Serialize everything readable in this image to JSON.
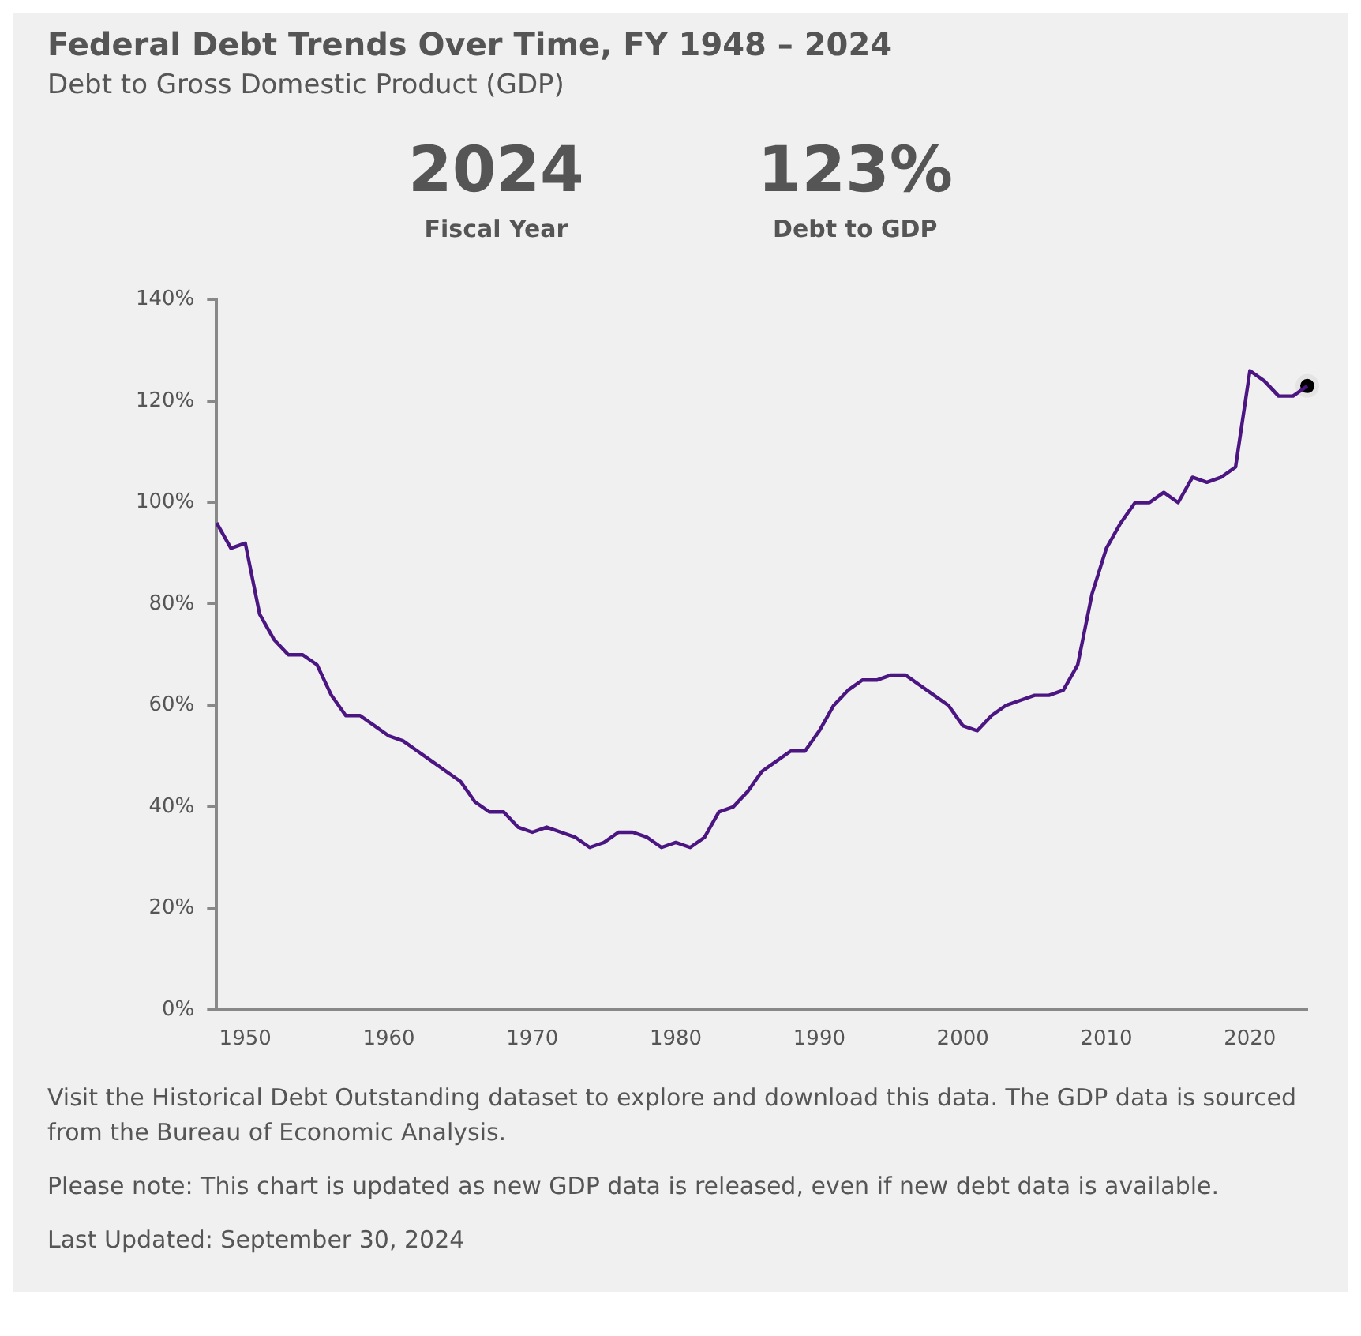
{
  "chart_data": {
    "type": "line",
    "title": "Federal Debt Trends Over Time, FY 1948 – 2024",
    "subtitle": "Debt to Gross Domestic Product (GDP)",
    "annotations": [
      "2024",
      "Fiscal Year",
      "123%",
      "Debt to GDP",
      "Visit the Historical Debt Outstanding dataset to explore and download this data. The GDP data is sourced from the Bureau of Economic Analysis.",
      "Please note: This chart is updated as new GDP data is released, even if new debt data is available.",
      "Last Updated: September 30, 2024"
    ],
    "x": [
      1948,
      1949,
      1950,
      1951,
      1952,
      1953,
      1954,
      1955,
      1956,
      1957,
      1958,
      1959,
      1960,
      1961,
      1962,
      1963,
      1964,
      1965,
      1966,
      1967,
      1968,
      1969,
      1970,
      1971,
      1972,
      1973,
      1974,
      1975,
      1976,
      1977,
      1978,
      1979,
      1980,
      1981,
      1982,
      1983,
      1984,
      1985,
      1986,
      1987,
      1988,
      1989,
      1990,
      1991,
      1992,
      1993,
      1994,
      1995,
      1996,
      1997,
      1998,
      1999,
      2000,
      2001,
      2002,
      2003,
      2004,
      2005,
      2006,
      2007,
      2008,
      2009,
      2010,
      2011,
      2012,
      2013,
      2014,
      2015,
      2016,
      2017,
      2018,
      2019,
      2020,
      2021,
      2022,
      2023,
      2024
    ],
    "series": [
      {
        "color": "#4b1582",
        "marker": "none",
        "values": [
          96,
          91,
          92,
          78,
          73,
          70,
          70,
          68,
          62,
          58,
          58,
          56,
          54,
          53,
          51,
          49,
          47,
          45,
          41,
          39,
          39,
          36,
          35,
          36,
          35,
          34,
          32,
          33,
          35,
          35,
          34,
          32,
          33,
          32,
          34,
          39,
          40,
          43,
          47,
          49,
          51,
          51,
          55,
          60,
          63,
          65,
          65,
          66,
          66,
          64,
          62,
          60,
          56,
          55,
          58,
          60,
          61,
          62,
          62,
          63,
          68,
          82,
          91,
          96,
          100,
          100,
          102,
          100,
          105,
          104,
          105,
          107,
          126,
          124,
          121,
          121,
          123
        ]
      },
      {
        "type": "scatter",
        "color": "#000000",
        "marker": "circle",
        "x": [
          2024
        ],
        "values": [
          123
        ]
      }
    ],
    "xlim": [
      1948,
      2024
    ],
    "xticks": [
      1950,
      1960,
      1970,
      1980,
      1990,
      2000,
      2010,
      2020
    ],
    "ylim": [
      0,
      140
    ],
    "yticks": [
      {
        "value": 0,
        "label": "0%"
      },
      {
        "value": 20,
        "label": "20%"
      },
      {
        "value": 40,
        "label": "40%"
      },
      {
        "value": 60,
        "label": "60%"
      },
      {
        "value": 80,
        "label": "80%"
      },
      {
        "value": 100,
        "label": "100%"
      },
      {
        "value": 120,
        "label": "120%"
      },
      {
        "value": 140,
        "label": "140%"
      }
    ],
    "grid": false,
    "legend": false
  }
}
